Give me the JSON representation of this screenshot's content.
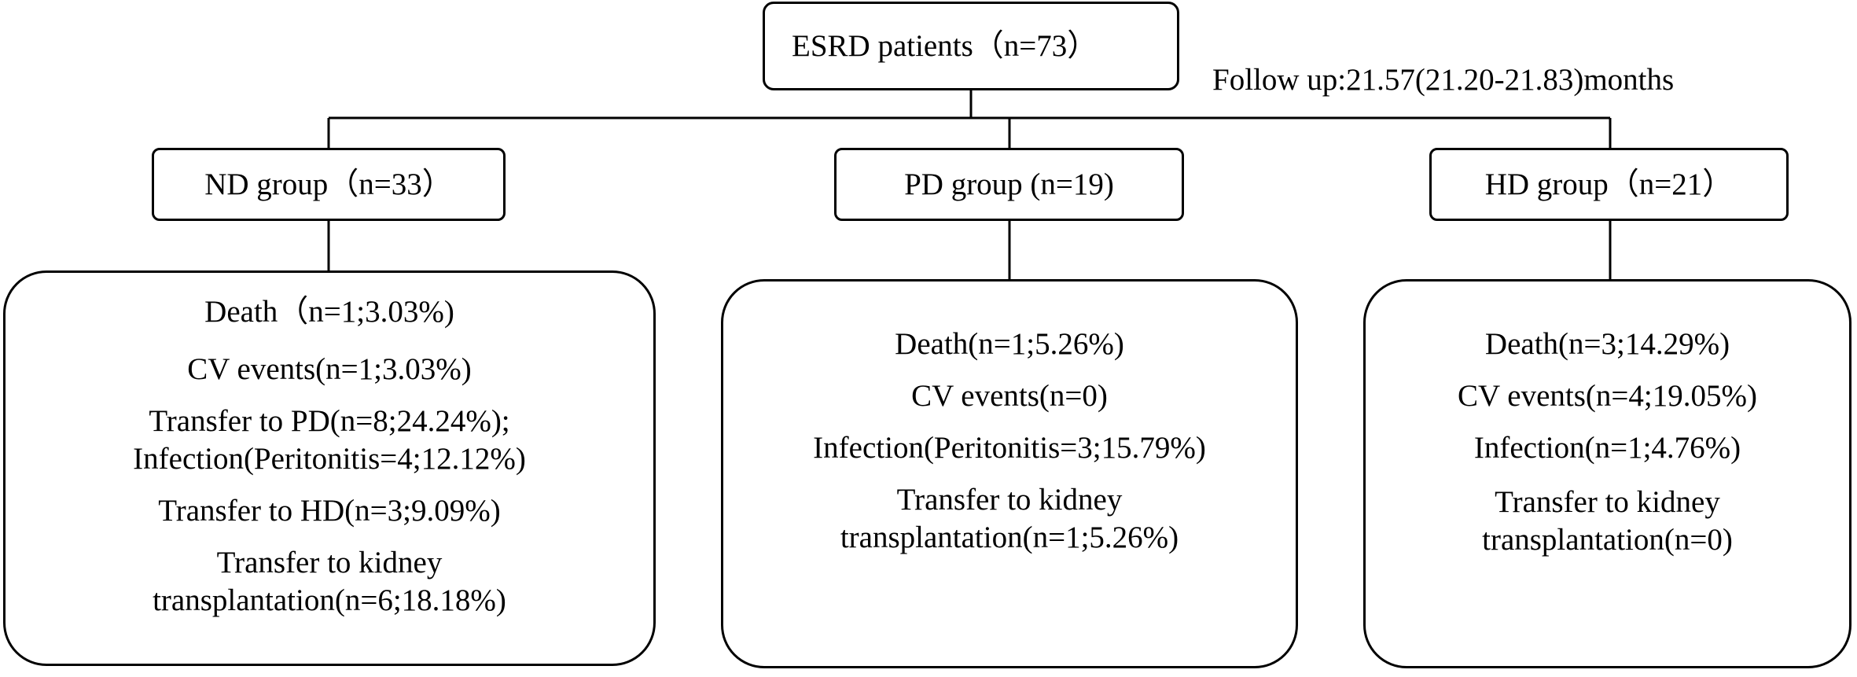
{
  "root": {
    "label": "ESRD patients（n=73）"
  },
  "follow_up": "Follow up:21.57(21.20-21.83)months",
  "groups": [
    {
      "label": "ND group（n=33）",
      "outcomes": [
        "Death（n=1;3.03%)",
        "CV events(n=1;3.03%)",
        "Transfer to PD(n=8;24.24%);",
        "Infection(Peritonitis=4;12.12%)",
        "Transfer to HD(n=3;9.09%)",
        "Transfer to kidney",
        "transplantation(n=6;18.18%)"
      ]
    },
    {
      "label": "PD group (n=19)",
      "outcomes": [
        "Death(n=1;5.26%)",
        "CV events(n=0)",
        "Infection(Peritonitis=3;15.79%)",
        "Transfer to kidney",
        "transplantation(n=1;5.26%)"
      ]
    },
    {
      "label": "HD group（n=21）",
      "outcomes": [
        "Death(n=3;14.29%)",
        "CV events(n=4;19.05%)",
        "Infection(n=1;4.76%)",
        "Transfer to kidney",
        "transplantation(n=0)"
      ]
    }
  ]
}
